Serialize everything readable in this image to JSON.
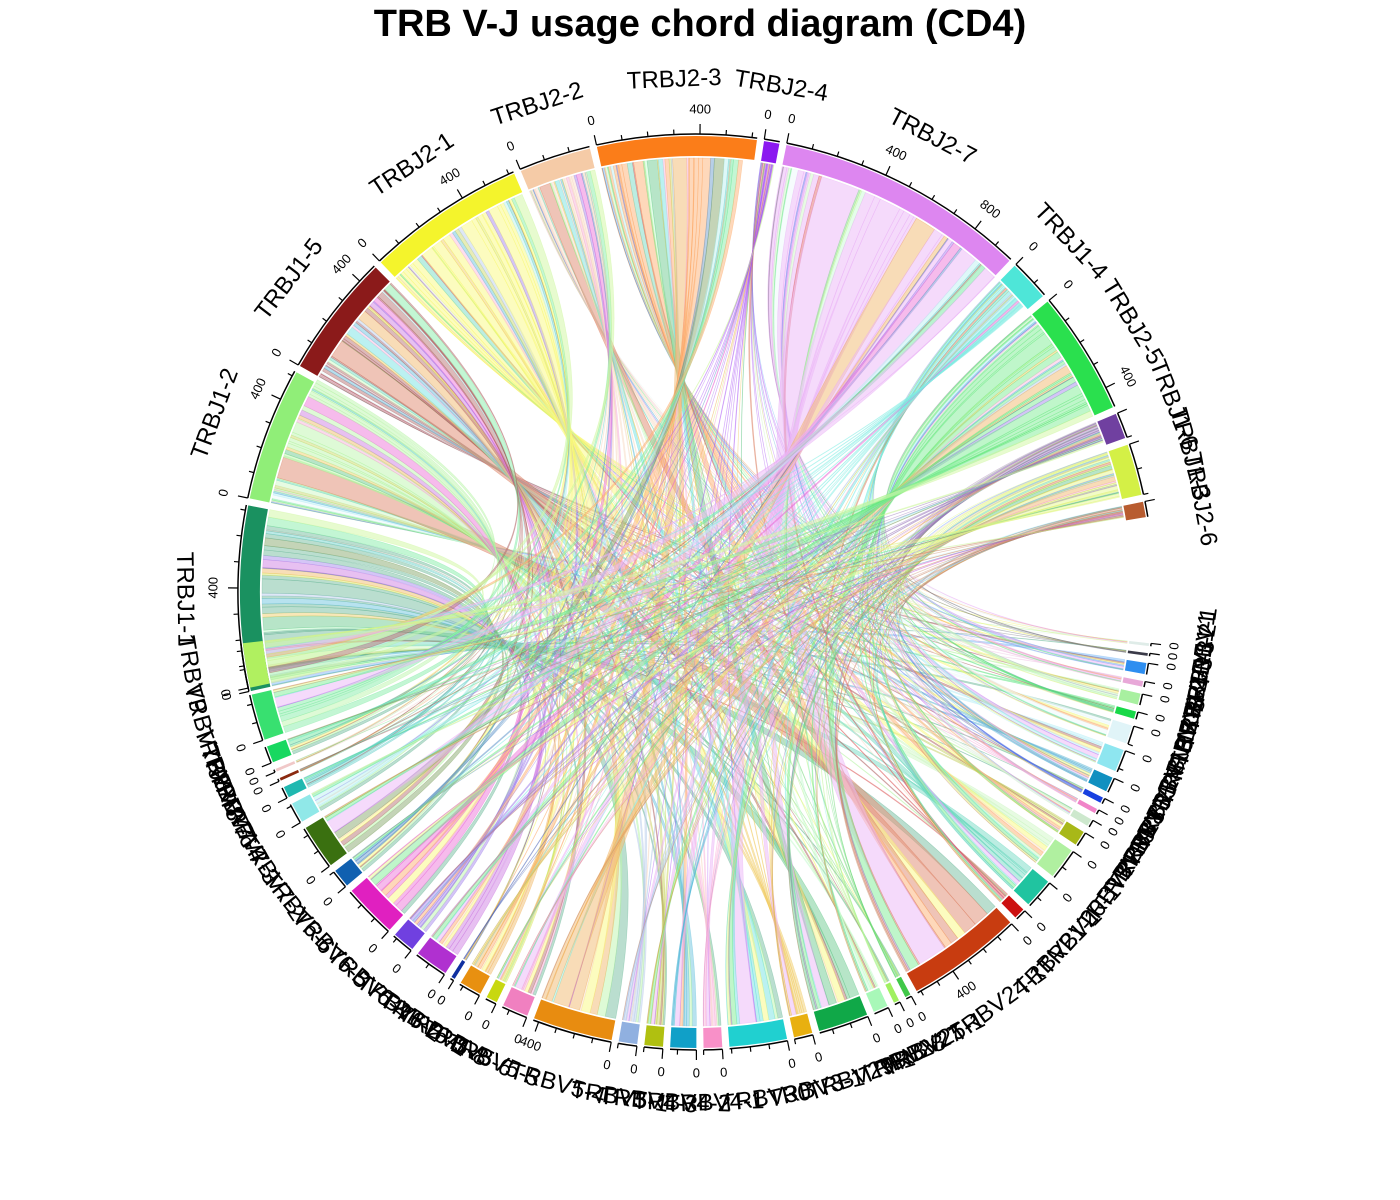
{
  "title": "TRB V-J usage chord diagram (CD4)",
  "chart_data": {
    "type": "chord",
    "j_sectors": [
      {
        "name": "TRBJ1-1",
        "value": 720,
        "color": "#1a9160",
        "ticks": [
          0,
          400
        ]
      },
      {
        "name": "TRBJ1-2",
        "value": 520,
        "color": "#90ee78",
        "ticks": [
          0,
          400
        ]
      },
      {
        "name": "TRBJ1-5",
        "value": 480,
        "color": "#8b1a1a",
        "ticks": [
          0,
          400
        ]
      },
      {
        "name": "TRBJ2-1",
        "value": 620,
        "color": "#f4f42c",
        "ticks": [
          0,
          400
        ]
      },
      {
        "name": "TRBJ2-2",
        "value": 280,
        "color": "#f5cba7",
        "ticks": [
          0
        ]
      },
      {
        "name": "TRBJ2-3",
        "value": 620,
        "color": "#fb7d19",
        "ticks": [
          0,
          400
        ]
      },
      {
        "name": "TRBJ2-4",
        "value": 60,
        "color": "#8b19f0",
        "ticks": [
          0
        ]
      },
      {
        "name": "TRBJ2-7",
        "value": 980,
        "color": "#dd86f0",
        "ticks": [
          0,
          400,
          800
        ]
      },
      {
        "name": "TRBJ1-4",
        "value": 160,
        "color": "#4ee6d8",
        "ticks": [
          0
        ]
      },
      {
        "name": "TRBJ2-5",
        "value": 480,
        "color": "#2ae04e",
        "ticks": [
          0,
          400
        ]
      },
      {
        "name": "TRBJ1-6",
        "value": 100,
        "color": "#7040a0",
        "ticks": []
      },
      {
        "name": "TRBJ1-3",
        "value": 200,
        "color": "#d4f046",
        "ticks": []
      },
      {
        "name": "TRBJ2-6",
        "value": 60,
        "color": "#b85c30",
        "ticks": []
      }
    ],
    "v_sectors": [
      {
        "name": "TRBV1",
        "value": 15,
        "color": "#dfece8",
        "ticks": [
          0
        ]
      },
      {
        "name": "TRBV11-1",
        "value": 15,
        "color": "#3a3a48",
        "ticks": [
          0
        ]
      },
      {
        "name": "TRBV11-2",
        "value": 60,
        "color": "#2e8ef0",
        "ticks": [
          0
        ]
      },
      {
        "name": "TRBV11-3",
        "value": 30,
        "color": "#e8a8d8",
        "ticks": [
          0
        ]
      },
      {
        "name": "TRBV12-3",
        "value": 60,
        "color": "#a8f0a0",
        "ticks": [
          0
        ]
      },
      {
        "name": "TRBV12-4",
        "value": 40,
        "color": "#18d848",
        "ticks": [
          0
        ]
      },
      {
        "name": "TRBV12-5",
        "value": 100,
        "color": "#e0f4f8",
        "ticks": [
          0
        ]
      },
      {
        "name": "TRBV13",
        "value": 120,
        "color": "#8ee6f0",
        "ticks": [
          0
        ]
      },
      {
        "name": "TRBV14",
        "value": 80,
        "color": "#1090c0",
        "ticks": [
          0
        ]
      },
      {
        "name": "TRBV15",
        "value": 30,
        "color": "#1840e0",
        "ticks": [
          0
        ]
      },
      {
        "name": "TRBV16",
        "value": 25,
        "color": "#f084c8",
        "ticks": [
          0
        ]
      },
      {
        "name": "TRBV18",
        "value": 40,
        "color": "#cde8cd",
        "ticks": [
          0
        ]
      },
      {
        "name": "TRBV19",
        "value": 80,
        "color": "#a8b818",
        "ticks": [
          0
        ]
      },
      {
        "name": "TRBV2",
        "value": 170,
        "color": "#b0f0a0",
        "ticks": [
          0
        ]
      },
      {
        "name": "TRBV20-1",
        "value": 160,
        "color": "#20c4a0",
        "ticks": [
          0
        ]
      },
      {
        "name": "TRBV21-1",
        "value": 60,
        "color": "#cc1010",
        "ticks": [
          0
        ]
      },
      {
        "name": "TRBV24-1",
        "value": 620,
        "color": "#c83c10",
        "ticks": [
          0,
          400
        ]
      },
      {
        "name": "TRBV25-1",
        "value": 30,
        "color": "#40c848",
        "ticks": [
          0
        ]
      },
      {
        "name": "TRBV27",
        "value": 30,
        "color": "#a0f060",
        "ticks": [
          0
        ]
      },
      {
        "name": "TRBV28",
        "value": 80,
        "color": "#a8f8b8",
        "ticks": [
          0
        ]
      },
      {
        "name": "TRBV29-1",
        "value": 270,
        "color": "#10a848",
        "ticks": [
          0
        ]
      },
      {
        "name": "TRBV3-1",
        "value": 100,
        "color": "#e8b010",
        "ticks": [
          0
        ]
      },
      {
        "name": "TRBV30",
        "value": 310,
        "color": "#20d0d0",
        "ticks": [
          0
        ]
      },
      {
        "name": "TRBV4-1",
        "value": 100,
        "color": "#f890c8",
        "ticks": [
          0
        ]
      },
      {
        "name": "TRBV4-2",
        "value": 140,
        "color": "#10a0c8",
        "ticks": [
          0
        ]
      },
      {
        "name": "TRBV4-3",
        "value": 100,
        "color": "#b0c010",
        "ticks": [
          0
        ]
      },
      {
        "name": "TRBV5-1",
        "value": 100,
        "color": "#90b0e0",
        "ticks": [
          0
        ]
      },
      {
        "name": "TRBV5-4",
        "value": 430,
        "color": "#e88c10",
        "ticks": [
          0,
          400
        ]
      },
      {
        "name": "TRBV5-5",
        "value": 140,
        "color": "#f080c0",
        "ticks": [
          0
        ]
      },
      {
        "name": "TRBV5-6",
        "value": 60,
        "color": "#c8d810",
        "ticks": [
          0
        ]
      },
      {
        "name": "TRBV5-8",
        "value": 120,
        "color": "#e89010",
        "ticks": [
          0
        ]
      },
      {
        "name": "TRBV6-1",
        "value": 20,
        "color": "#1030a0",
        "ticks": [
          0
        ]
      },
      {
        "name": "TRBV6-2",
        "value": 180,
        "color": "#b030d0",
        "ticks": [
          0
        ]
      },
      {
        "name": "TRBV6-4",
        "value": 120,
        "color": "#7040e0",
        "ticks": [
          0
        ]
      },
      {
        "name": "TRBV6-5",
        "value": 290,
        "color": "#e020c0",
        "ticks": [
          0
        ]
      },
      {
        "name": "TRBV6-6",
        "value": 100,
        "color": "#1060b0",
        "ticks": [
          0
        ]
      },
      {
        "name": "TRBV7-2",
        "value": 240,
        "color": "#3a7010",
        "ticks": [
          0
        ]
      },
      {
        "name": "TRBV7-3",
        "value": 110,
        "color": "#90e8e8",
        "ticks": [
          0
        ]
      },
      {
        "name": "TRBV7-4",
        "value": 60,
        "color": "#20b8b0",
        "ticks": [
          0
        ]
      },
      {
        "name": "TRBV7-6",
        "value": 15,
        "color": "#8b2a10",
        "ticks": [
          0
        ]
      },
      {
        "name": "TRBV7-7",
        "value": 15,
        "color": "#f0c8c8",
        "ticks": [
          0
        ]
      },
      {
        "name": "TRBV7-8",
        "value": 90,
        "color": "#18d860",
        "ticks": [
          0
        ]
      },
      {
        "name": "TRBV7-9",
        "value": 250,
        "color": "#38e070",
        "ticks": [
          0
        ]
      },
      {
        "name": "TRBV9",
        "value": 240,
        "color": "#b0f060",
        "ticks": [
          0
        ]
      }
    ]
  }
}
